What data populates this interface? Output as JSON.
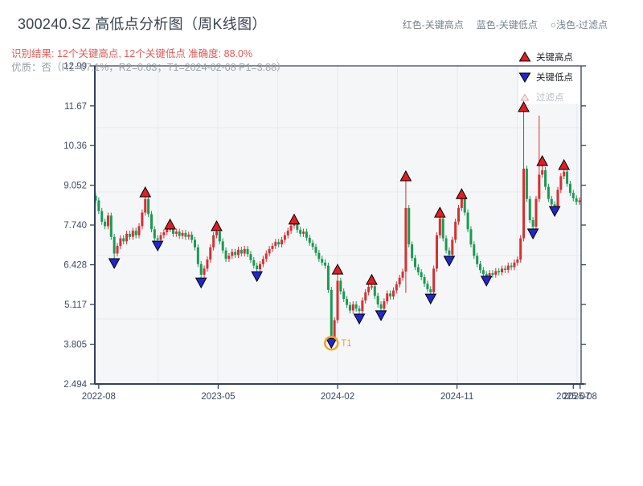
{
  "header": {
    "title": "300240.SZ 高低点分析图（周K线图）",
    "legend_top": [
      "红色-关键高点",
      "蓝色-关键低点",
      "○浅色-过滤点"
    ],
    "result_line": "识别结果: 12个关键高点, 12个关键低点  准确度: 88.0%",
    "quality_line": "优质：否（R1=67.1%，R2=0.63；T1=2024-02-08 P1=3.88）"
  },
  "legend": {
    "high_label": "关键高点",
    "low_label": "关键低点",
    "filter_label": "过滤点"
  },
  "chart_data": {
    "type": "candlestick",
    "symbol": "300240.SZ",
    "period": "weekly",
    "title": "300240.SZ 高低点分析图（周K线图）",
    "ylim": [
      2.494,
      12.99
    ],
    "y_tick_values": [
      12.99,
      11.67,
      10.36,
      9.052,
      7.74,
      6.428,
      5.117,
      3.805,
      2.494
    ],
    "y_tick_labels": [
      "12.99",
      "11.67",
      "10.36",
      "9.052",
      "7.740",
      "6.428",
      "5.117",
      "3.805",
      "2.494"
    ],
    "x_ticks": [
      {
        "label": "2022-08",
        "week": 1
      },
      {
        "label": "2023-05",
        "week": 39.5
      },
      {
        "label": "2024-02",
        "week": 78
      },
      {
        "label": "2024-11",
        "week": 116.5
      },
      {
        "label": "2025-07",
        "week": 154
      },
      {
        "label": "2025-08",
        "week": 156.2
      }
    ],
    "grid": {
      "vgrid_weeks": [
        20.1,
        39.4,
        58.7,
        78,
        97.3,
        116.6,
        135.9,
        155.2
      ],
      "hgrid_values": [
        10.95,
        8.83,
        6.73,
        4.64
      ]
    },
    "first_open": 8.7,
    "weekly_closes": [
      8.55,
      8.2,
      7.85,
      7.7,
      8.05,
      7.35,
      6.8,
      7.05,
      7.3,
      7.2,
      7.45,
      7.35,
      7.55,
      7.4,
      7.7,
      8.15,
      8.6,
      8.1,
      7.6,
      7.3,
      7.25,
      7.4,
      7.5,
      7.6,
      7.62,
      7.45,
      7.52,
      7.38,
      7.48,
      7.35,
      7.42,
      7.25,
      7.0,
      6.45,
      6.1,
      6.3,
      6.6,
      7.0,
      7.4,
      7.52,
      7.2,
      6.9,
      6.62,
      6.72,
      6.85,
      6.75,
      6.92,
      6.8,
      6.95,
      6.78,
      6.58,
      6.4,
      6.28,
      6.45,
      6.62,
      6.8,
      6.95,
      7.05,
      7.18,
      7.1,
      7.25,
      7.4,
      7.55,
      7.72,
      7.8,
      7.58,
      7.45,
      7.52,
      7.32,
      7.15,
      7.02,
      6.82,
      6.62,
      6.5,
      6.4,
      5.6,
      4.0,
      4.6,
      5.9,
      5.55,
      5.3,
      5.1,
      4.92,
      5.12,
      4.98,
      4.9,
      5.25,
      5.52,
      5.7,
      5.72,
      5.4,
      5.12,
      4.98,
      5.22,
      5.48,
      5.38,
      5.58,
      5.78,
      6.0,
      6.2,
      8.3,
      7.1,
      6.65,
      6.35,
      6.18,
      6.02,
      5.8,
      5.62,
      5.52,
      6.3,
      7.4,
      7.95,
      7.3,
      6.9,
      6.76,
      7.25,
      7.85,
      8.3,
      8.62,
      8.15,
      7.6,
      7.1,
      6.72,
      6.45,
      6.25,
      6.12,
      6.06,
      6.15,
      6.1,
      6.22,
      6.18,
      6.3,
      6.26,
      6.4,
      6.35,
      6.5,
      6.6,
      7.3,
      9.6,
      8.6,
      7.9,
      7.68,
      8.6,
      9.4,
      9.55,
      9.0,
      8.6,
      8.42,
      8.35,
      8.9,
      9.35,
      9.5,
      9.1,
      8.8,
      8.62,
      8.5,
      8.55
    ],
    "bar_overrides": {
      "6": {
        "l": 6.6
      },
      "16": {
        "h": 8.72
      },
      "20": {
        "l": 7.12
      },
      "24": {
        "h": 7.68
      },
      "34": {
        "l": 5.95
      },
      "39": {
        "h": 7.62
      },
      "52": {
        "l": 6.15
      },
      "64": {
        "h": 7.9
      },
      "76": {
        "l": 3.88
      },
      "78": {
        "h": 6.12
      },
      "85": {
        "l": 4.76
      },
      "89": {
        "h": 5.85
      },
      "92": {
        "l": 4.86
      },
      "100": {
        "h": 9.25,
        "l": 5.5
      },
      "108": {
        "l": 5.42
      },
      "111": {
        "h": 8.08
      },
      "114": {
        "l": 6.66
      },
      "118": {
        "h": 8.72
      },
      "126": {
        "l": 5.98
      },
      "138": {
        "h": 11.55
      },
      "141": {
        "l": 7.56
      },
      "143": {
        "h": 11.35
      },
      "144": {
        "h": 9.7
      },
      "148": {
        "l": 8.28
      },
      "151": {
        "h": 9.62
      }
    },
    "key_highs": [
      {
        "week": 16,
        "price": 8.83
      },
      {
        "week": 24,
        "price": 7.77
      },
      {
        "week": 39,
        "price": 7.71
      },
      {
        "week": 64,
        "price": 7.93
      },
      {
        "week": 78,
        "price": 6.28
      },
      {
        "week": 89,
        "price": 5.94
      },
      {
        "week": 100,
        "price": 9.36
      },
      {
        "week": 111,
        "price": 8.16
      },
      {
        "week": 118,
        "price": 8.77
      },
      {
        "week": 138,
        "price": 11.64
      },
      {
        "week": 144,
        "price": 9.86
      },
      {
        "week": 151,
        "price": 9.73
      }
    ],
    "key_lows": [
      {
        "week": 6,
        "price": 6.47
      },
      {
        "week": 20,
        "price": 7.05
      },
      {
        "week": 34,
        "price": 5.83
      },
      {
        "week": 52,
        "price": 6.04
      },
      {
        "week": 76,
        "price": 3.84
      },
      {
        "week": 85,
        "price": 4.64
      },
      {
        "week": 92,
        "price": 4.75
      },
      {
        "week": 108,
        "price": 5.3
      },
      {
        "week": 114,
        "price": 6.55
      },
      {
        "week": 126,
        "price": 5.89
      },
      {
        "week": 141,
        "price": 7.45
      },
      {
        "week": 148,
        "price": 8.19
      }
    ],
    "t1_annotation": {
      "label": "T1",
      "week": 76,
      "price": 3.88,
      "date": "2024-02-08"
    },
    "colors": {
      "up": "#d63031",
      "down": "#1a9a52",
      "high_marker": "#e51c23",
      "low_marker": "#2026d2",
      "filter_marker_fill": "#fbe9e7",
      "filter_marker_edge": "#d8a7a0",
      "annotation": "#f5a51f",
      "plot_bg": "#f5f6f8",
      "spine": "#33425c",
      "grid": "#e7eaee",
      "tick_label": "#3c4a64"
    }
  }
}
